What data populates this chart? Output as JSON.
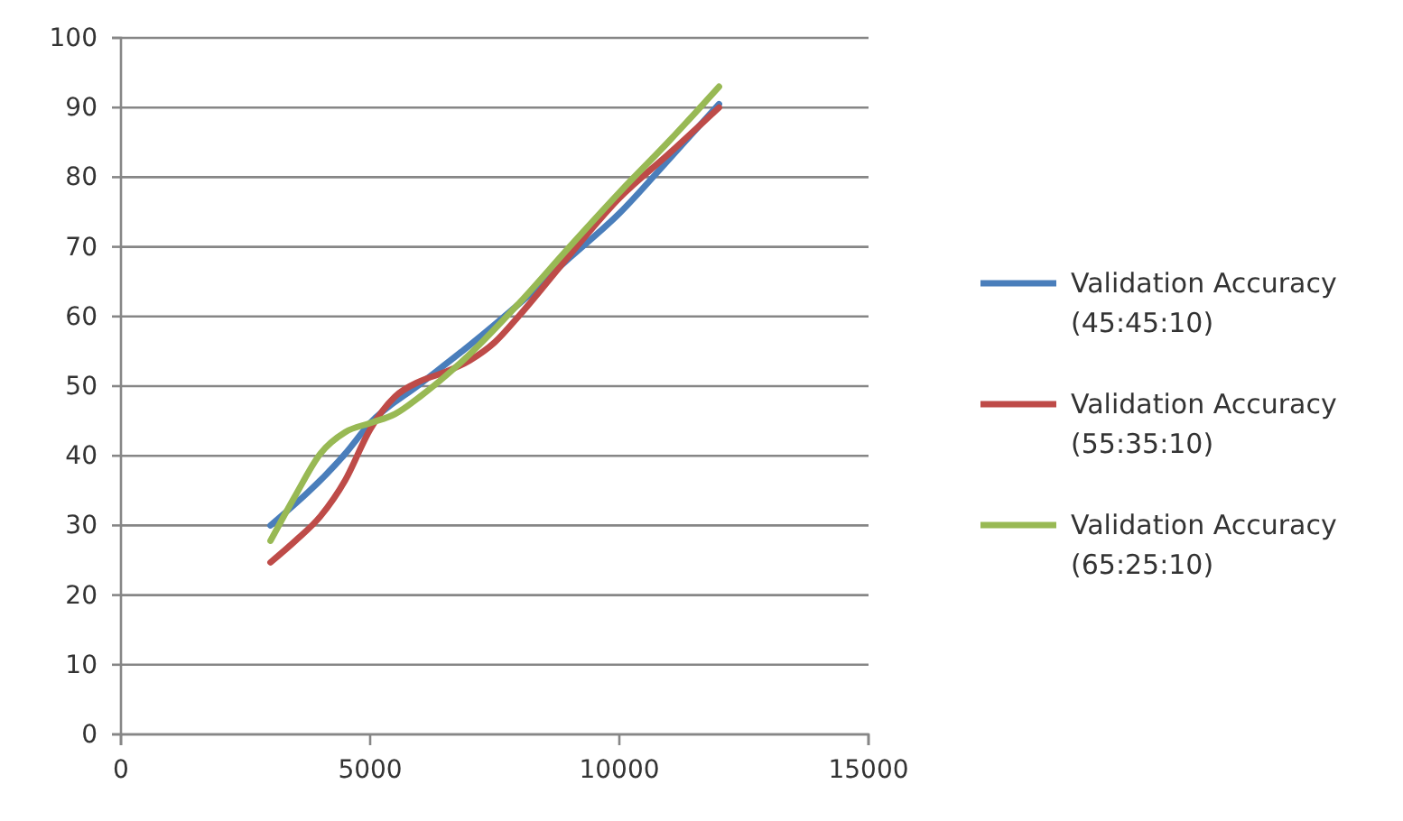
{
  "chart_data": {
    "type": "line",
    "xlim": [
      0,
      15000
    ],
    "xticks": [
      0,
      5000,
      10000,
      15000
    ],
    "ylim": [
      0,
      100
    ],
    "yticks": [
      0,
      10,
      20,
      30,
      40,
      50,
      60,
      70,
      80,
      90,
      100
    ],
    "grid": "y",
    "legend": "right",
    "marker": "none",
    "line_style": "solid",
    "series": [
      {
        "name": "Validation Accuracy (45:45:10)",
        "color": "#4a7ebb",
        "x": [
          3000,
          4500,
          5000,
          6000,
          7000,
          8000,
          9000,
          10000,
          11000,
          12000
        ],
        "values": [
          30,
          40.3,
          44.7,
          50.3,
          55.9,
          61.9,
          68.4,
          74.8,
          82.6,
          90.5
        ]
      },
      {
        "name": "Validation Accuracy (55:35:10)",
        "color": "#be4b48",
        "x": [
          3000,
          3500,
          4000,
          4500,
          5000,
          5500,
          6000,
          6500,
          7000,
          7500,
          8000,
          9000,
          10000,
          11000,
          12000
        ],
        "values": [
          24.7,
          27.8,
          31.3,
          36.5,
          43.8,
          48.5,
          50.7,
          52,
          53.7,
          56.3,
          60.2,
          68.8,
          77,
          83.4,
          90
        ]
      },
      {
        "name": "Validation Accuracy (65:25:10)",
        "color": "#98b954",
        "x": [
          3000,
          3500,
          4000,
          4500,
          5000,
          5500,
          6000,
          7000,
          8000,
          9000,
          10000,
          11000,
          12000
        ],
        "values": [
          27.8,
          34.3,
          40.3,
          43.4,
          44.7,
          46,
          48.5,
          54.6,
          62,
          70,
          77.8,
          85.2,
          93
        ]
      }
    ]
  }
}
